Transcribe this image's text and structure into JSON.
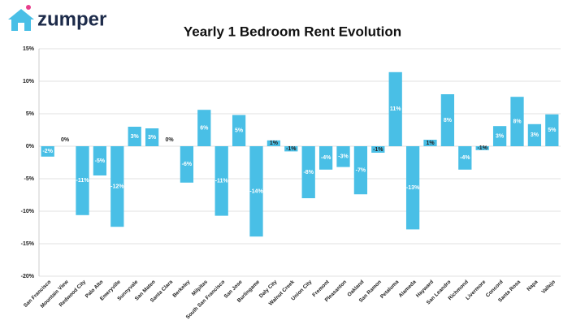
{
  "brand": "zumper",
  "chart_data": {
    "type": "bar",
    "title": "Yearly 1 Bedroom Rent Evolution",
    "categories": [
      "San Francisco",
      "Mountain View",
      "Redwood City",
      "Palo Alto",
      "Emeryville",
      "Sunnyvale",
      "San Mateo",
      "Santa Clara",
      "Berkeley",
      "Milpitas",
      "South San Francisco",
      "San Jose",
      "Burlingame",
      "Daly City",
      "Walnut Creek",
      "Union City",
      "Fremont",
      "Pleasanton",
      "Oakland",
      "San Ramon",
      "Petaluma",
      "Alameda",
      "Hayward",
      "San Leandro",
      "Richmond",
      "Livermore",
      "Concord",
      "Santa Rosa",
      "Napa",
      "Vallejo"
    ],
    "values": [
      -1.6,
      0,
      -10.6,
      -4.5,
      -12.4,
      3.0,
      2.75,
      0,
      -5.6,
      5.6,
      -10.7,
      4.8,
      -13.9,
      0.9,
      -0.8,
      -8.0,
      -3.6,
      -3.2,
      -7.4,
      -1.0,
      11.4,
      -12.8,
      1.0,
      8.0,
      -3.6,
      -0.6,
      3.1,
      7.6,
      3.4,
      4.9
    ],
    "value_labels": [
      "-2%",
      "0%",
      "-11%",
      "-5%",
      "-12%",
      "3%",
      "3%",
      "0%",
      "-6%",
      "6%",
      "-11%",
      "5%",
      "-14%",
      "1%",
      "-1%",
      "-8%",
      "-4%",
      "-3%",
      "-7%",
      "-1%",
      "11%",
      "-13%",
      "1%",
      "8%",
      "-4%",
      "-1%",
      "3%",
      "8%",
      "3%",
      "5%"
    ],
    "color": "#49bfe6",
    "ylim": [
      -20,
      15
    ],
    "yticks": [
      {
        "value": -20,
        "label": "-20%"
      },
      {
        "value": -15,
        "label": "-15%"
      },
      {
        "value": -10,
        "label": "-10%"
      },
      {
        "value": -5,
        "label": "-5%"
      },
      {
        "value": 0,
        "label": "0%"
      },
      {
        "value": 5,
        "label": "5%"
      },
      {
        "value": 10,
        "label": "10%"
      },
      {
        "value": 15,
        "label": "15%"
      }
    ],
    "grid": true
  }
}
